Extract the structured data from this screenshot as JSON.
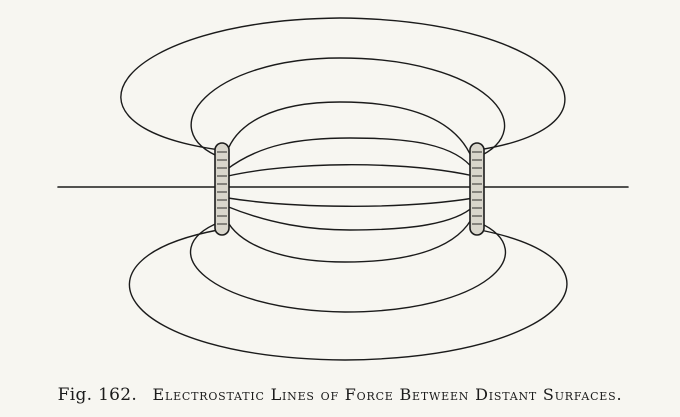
{
  "figure": {
    "label": "Fig. 162.",
    "title": "Electrostatic Lines of Force Between Distant Surfaces."
  },
  "colors": {
    "paper": "#f7f6f1",
    "ink": "#1b1b1b",
    "plate_fill": "#d9d6cc"
  }
}
